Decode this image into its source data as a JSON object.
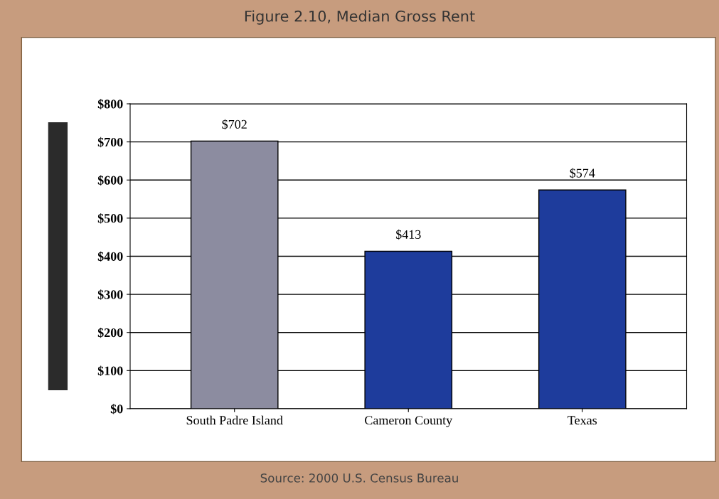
{
  "chart_data": {
    "type": "bar",
    "title": "Figure 2.10, Median Gross Rent",
    "categories": [
      "South Padre Island",
      "Cameron County",
      "Texas"
    ],
    "values": [
      702,
      413,
      574
    ],
    "colors": [
      "#8c8ca0",
      "#1e3c9c",
      "#1e3c9c"
    ],
    "value_labels": [
      "$702",
      "$413",
      "$574"
    ],
    "ylim": [
      0,
      800
    ],
    "yticks": [
      {
        "value": 0,
        "label": "$0"
      },
      {
        "value": 100,
        "label": "$100"
      },
      {
        "value": 200,
        "label": "$200"
      },
      {
        "value": 300,
        "label": "$300"
      },
      {
        "value": 400,
        "label": "$400"
      },
      {
        "value": 500,
        "label": "$500"
      },
      {
        "value": 600,
        "label": "$600"
      },
      {
        "value": 700,
        "label": "$700"
      },
      {
        "value": 800,
        "label": "$800"
      }
    ],
    "grid": "y",
    "annotations": [
      "Source: 2000 U.S. Census Bureau"
    ]
  }
}
